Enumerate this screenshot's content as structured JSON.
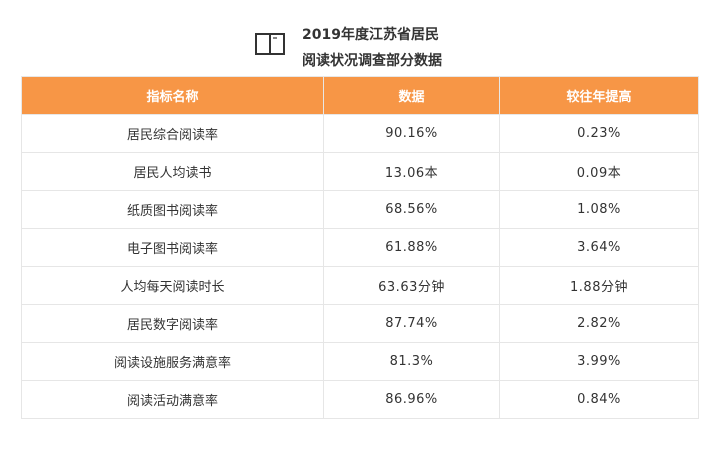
{
  "header": {
    "icon": "open-book-icon",
    "title_line1": "2019年度江苏省居民",
    "title_line2": "阅读状况调查部分数据"
  },
  "table": {
    "columns": [
      "指标名称",
      "数据",
      "较往年提高"
    ],
    "rows": [
      {
        "name": "居民综合阅读率",
        "value": "90.16%",
        "increase": "0.23%"
      },
      {
        "name": "居民人均读书",
        "value": "13.06本",
        "increase": "0.09本"
      },
      {
        "name": "纸质图书阅读率",
        "value": "68.56%",
        "increase": "1.08%"
      },
      {
        "name": "电子图书阅读率",
        "value": "61.88%",
        "increase": "3.64%"
      },
      {
        "name": "人均每天阅读时长",
        "value": "63.63分钟",
        "increase": "1.88分钟"
      },
      {
        "name": "居民数字阅读率",
        "value": "87.74%",
        "increase": "2.82%"
      },
      {
        "name": "阅读设施服务满意率",
        "value": "81.3%",
        "increase": "3.99%"
      },
      {
        "name": "阅读活动满意率",
        "value": "86.96%",
        "increase": "0.84%"
      }
    ]
  },
  "colors": {
    "header_bg": "#f79646",
    "header_text": "#ffffff",
    "border": "#e6e6e6",
    "text": "#333333"
  }
}
